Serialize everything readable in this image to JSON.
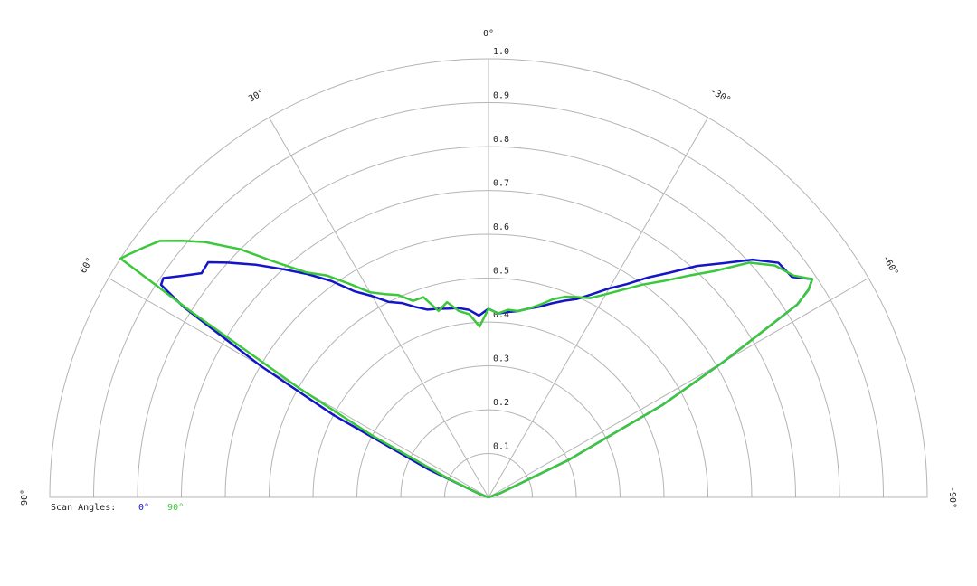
{
  "chart_data": {
    "type": "polar",
    "rlim": [
      0,
      1
    ],
    "rticks": [
      0.1,
      0.2,
      0.3,
      0.4,
      0.5,
      0.6,
      0.7,
      0.8,
      0.9,
      {
        "value": 1,
        "label": "1.0"
      }
    ],
    "thetalim": [
      -90,
      90
    ],
    "thetaticks": [
      {
        "value": 90,
        "label": "90°"
      },
      {
        "value": 60,
        "label": "60°"
      },
      {
        "value": 30,
        "label": "30°"
      },
      {
        "value": 0,
        "label": "0°"
      },
      {
        "value": -30,
        "label": "-30°"
      },
      {
        "value": -60,
        "label": "-60°"
      },
      {
        "value": -90,
        "label": "-90°"
      }
    ],
    "legend_title": "Scan Angles:",
    "legend": "bottom-left",
    "x": [
      90,
      80,
      70,
      65,
      62,
      60,
      58,
      57,
      56,
      54,
      52,
      50,
      48,
      45,
      42,
      39,
      36,
      33,
      30,
      27,
      24,
      21,
      18,
      15,
      12,
      9,
      6,
      3,
      0,
      -3,
      -6,
      -9,
      -12,
      -15,
      -18,
      -21,
      -24,
      -27,
      -30,
      -33,
      -36,
      -39,
      -42,
      -45,
      -48,
      -51,
      -54,
      -56,
      -57,
      -58,
      -60,
      -62,
      -65,
      -70,
      -80,
      -90
    ],
    "series": [
      {
        "name": "0°",
        "color": "#1414c8",
        "values": [
          0,
          0,
          0.02,
          0.15,
          0.4,
          0.6,
          0.82,
          0.89,
          0.894,
          0.86,
          0.83,
          0.834,
          0.8,
          0.75,
          0.7,
          0.655,
          0.61,
          0.56,
          0.53,
          0.5,
          0.485,
          0.465,
          0.45,
          0.445,
          0.44,
          0.437,
          0.43,
          0.415,
          0.43,
          0.42,
          0.425,
          0.43,
          0.44,
          0.45,
          0.465,
          0.48,
          0.495,
          0.52,
          0.55,
          0.58,
          0.62,
          0.66,
          0.71,
          0.755,
          0.81,
          0.85,
          0.855,
          0.89,
          0.87,
          0.83,
          0.62,
          0.45,
          0.2,
          0.03,
          0,
          0
        ]
      },
      {
        "name": "90°",
        "color": "#3cc83c",
        "values": [
          0,
          0,
          0.02,
          0.1,
          0.3,
          0.5,
          0.8,
          1.0,
          0.99,
          0.97,
          0.95,
          0.91,
          0.87,
          0.8,
          0.72,
          0.66,
          0.625,
          0.58,
          0.54,
          0.52,
          0.505,
          0.48,
          0.48,
          0.44,
          0.455,
          0.43,
          0.42,
          0.39,
          0.43,
          0.42,
          0.43,
          0.43,
          0.44,
          0.455,
          0.475,
          0.49,
          0.5,
          0.51,
          0.535,
          0.565,
          0.6,
          0.635,
          0.68,
          0.73,
          0.8,
          0.84,
          0.86,
          0.89,
          0.87,
          0.83,
          0.62,
          0.45,
          0.2,
          0.03,
          0,
          0
        ]
      }
    ]
  }
}
